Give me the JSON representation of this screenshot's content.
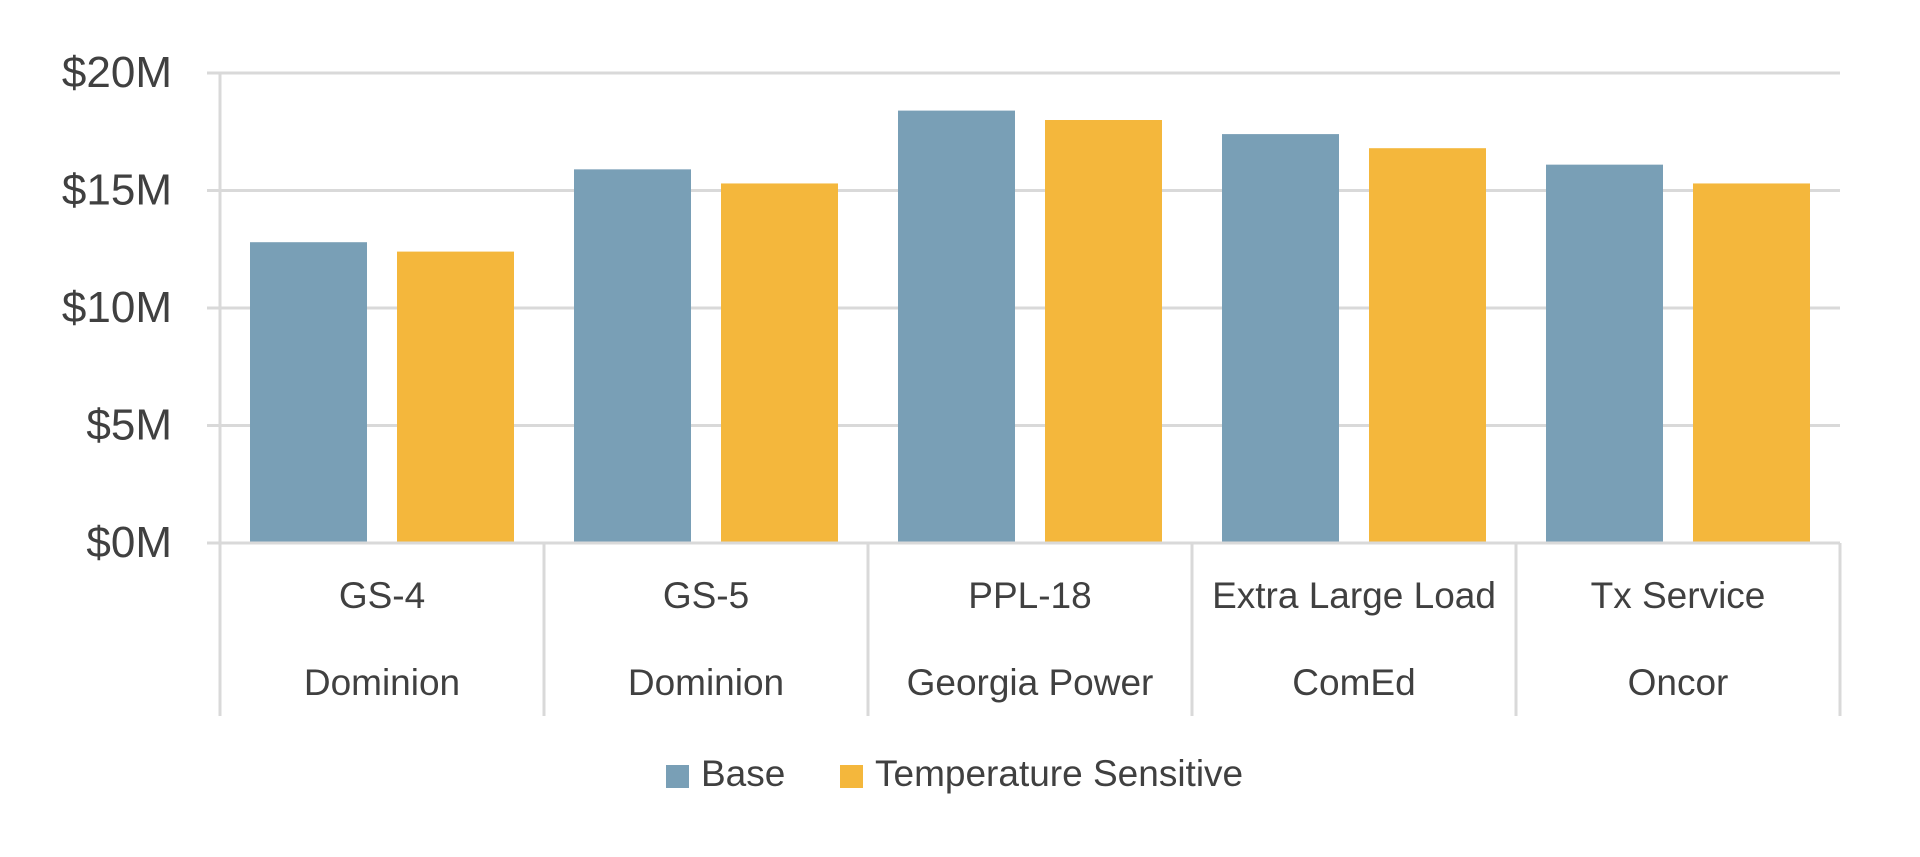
{
  "chart_data": {
    "type": "bar",
    "categories": [
      {
        "name": "GS-4",
        "group": "Dominion"
      },
      {
        "name": "GS-5",
        "group": "Dominion"
      },
      {
        "name": "PPL-18",
        "group": "Georgia Power"
      },
      {
        "name": "Extra Large Load",
        "group": "ComEd"
      },
      {
        "name": "Tx Service",
        "group": "Oncor"
      }
    ],
    "series": [
      {
        "name": "Base",
        "color": "#799fb6",
        "values": [
          12.8,
          15.9,
          18.4,
          17.4,
          16.1
        ]
      },
      {
        "name": "Temperature Sensitive",
        "color": "#f4b73c",
        "values": [
          12.4,
          15.3,
          18.0,
          16.8,
          15.3
        ]
      }
    ],
    "y_ticks": [
      {
        "value": 0,
        "label": "$0M"
      },
      {
        "value": 5,
        "label": "$5M"
      },
      {
        "value": 10,
        "label": "$10M"
      },
      {
        "value": 15,
        "label": "$15M"
      },
      {
        "value": 20,
        "label": "$20M"
      }
    ],
    "ylim": [
      0,
      20
    ],
    "grid": true,
    "legend_position": "bottom-center",
    "title": "",
    "xlabel": "",
    "ylabel": ""
  }
}
